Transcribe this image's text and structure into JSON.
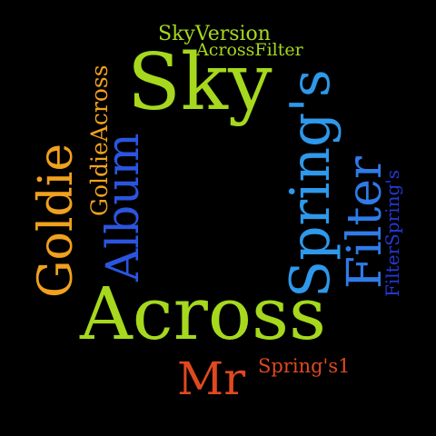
{
  "palette": {
    "background": "#000000",
    "lime": "#a6d81e",
    "orange": "#f0a11e",
    "blue": "#2b55e0",
    "sky": "#2e98ea",
    "red": "#e0491e",
    "light_blue": "#2f7be8",
    "royal": "#2438d4"
  },
  "words": {
    "sky_version": "SkyVersion",
    "across_filter": "AcrossFilter",
    "sky": "Sky",
    "springs_top": "'s",
    "goldie_across": "GoldieAcross",
    "goldie": "Goldie",
    "album": "Album",
    "springs": "Spring's",
    "filter": "Filter",
    "filter_springs": "FilterSpring's",
    "across": "Across",
    "mr": "Mr",
    "springs1": "Spring's1"
  }
}
